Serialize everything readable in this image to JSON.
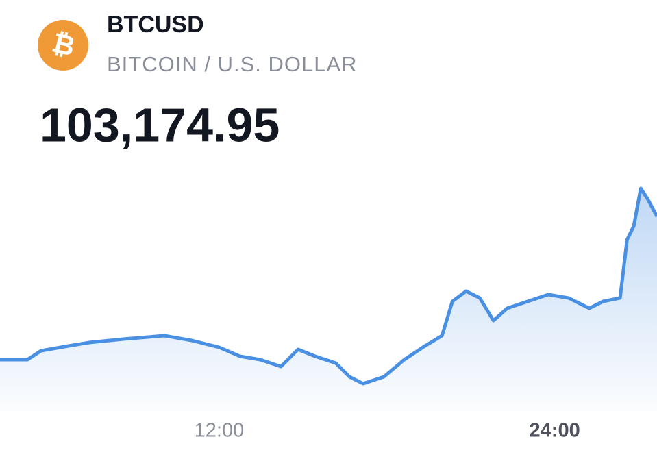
{
  "header": {
    "symbol": "BTCUSD",
    "name": "BITCOIN / U.S. DOLLAR",
    "price": "103,174.95",
    "logo": "₿"
  },
  "chart_data": {
    "type": "line",
    "x": [
      4.16,
      5.14,
      5.63,
      6.61,
      7.35,
      8.57,
      10.04,
      11.02,
      12.0,
      12.74,
      13.47,
      14.21,
      14.82,
      15.43,
      16.17,
      16.66,
      17.15,
      17.89,
      18.62,
      19.36,
      19.97,
      20.34,
      20.83,
      21.32,
      21.81,
      22.3,
      23.03,
      23.77,
      24.5,
      25.24,
      25.73,
      26.34,
      26.59,
      26.83,
      27.08,
      27.32,
      27.66
    ],
    "series": [
      {
        "name": "BTCUSD",
        "color": "#4a90e2",
        "values": [
          100103,
          100103,
          100294,
          100397,
          100471,
          100544,
          100618,
          100515,
          100368,
          100176,
          100103,
          99956,
          100324,
          100176,
          100029,
          99735,
          99588,
          99735,
          100103,
          100397,
          100618,
          101353,
          101574,
          101426,
          100941,
          101206,
          101353,
          101500,
          101426,
          101206,
          101353,
          101426,
          102676,
          102971,
          103779,
          103559,
          103175
        ]
      }
    ],
    "xlim": [
      4.16,
      27.66
    ],
    "xticks": [
      {
        "value": 12,
        "label": "12:00"
      },
      {
        "value": 24,
        "label": "24:00"
      }
    ],
    "ylim": [
      99000,
      104000
    ]
  }
}
